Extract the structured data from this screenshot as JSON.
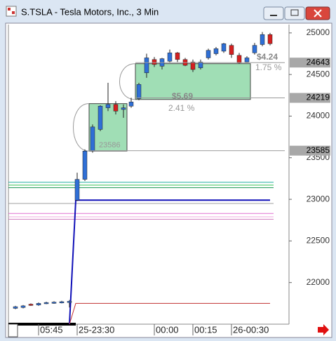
{
  "title": "S.TSLA - Tesla Motors, Inc., 3 Min",
  "chart_data": {
    "type": "candlestick",
    "categories": [
      null,
      null,
      null,
      "05:45",
      null,
      null,
      null,
      null,
      "25-23:30",
      null,
      null,
      null,
      null,
      null,
      null,
      null,
      null,
      null,
      "00:00",
      null,
      null,
      null,
      null,
      "00:15",
      null,
      null,
      null,
      null,
      "26-00:30",
      null,
      null,
      null,
      null,
      null
    ],
    "open": [
      21690,
      21700,
      21740,
      21730,
      21745,
      21750,
      21755,
      21760,
      22990,
      23240,
      23580,
      23840,
      24100,
      24140,
      24080,
      24120,
      24210,
      24520,
      24680,
      24600,
      24660,
      24760,
      24680,
      24650,
      24580,
      24700,
      24750,
      24780,
      24850,
      24730,
      24650,
      24760,
      24860,
      24980
    ],
    "high": [
      21720,
      21730,
      21750,
      21760,
      21770,
      21775,
      21780,
      21790,
      23320,
      23600,
      23900,
      24130,
      24400,
      24180,
      24140,
      24220,
      24400,
      24750,
      24710,
      24700,
      24800,
      24770,
      24700,
      24680,
      24680,
      24810,
      24830,
      24880,
      24870,
      24760,
      24720,
      24880,
      25010,
      25000
    ],
    "low": [
      21680,
      21690,
      21720,
      21720,
      21740,
      21745,
      21750,
      21700,
      22980,
      23220,
      23560,
      23820,
      24060,
      24020,
      23980,
      24100,
      24190,
      24460,
      24590,
      24560,
      24640,
      24650,
      24600,
      24530,
      24560,
      24680,
      24730,
      24760,
      24700,
      24630,
      24640,
      24740,
      24840,
      24850
    ],
    "close": [
      21710,
      21720,
      21725,
      21750,
      21760,
      21765,
      21770,
      21775,
      23240,
      23580,
      23870,
      24120,
      24140,
      24060,
      24100,
      24170,
      24380,
      24700,
      24620,
      24690,
      24760,
      24680,
      24610,
      24560,
      24650,
      24790,
      24810,
      24870,
      24740,
      24640,
      24700,
      24850,
      24980,
      24870
    ],
    "up_color": "#2f6fd6",
    "down_color": "#d42020",
    "ylim": [
      21500,
      25100
    ],
    "yticks": [
      22000,
      22500,
      23000,
      23500,
      24000,
      24500,
      25000
    ],
    "levels": [
      {
        "value": 23205,
        "color": "#22b0a0"
      },
      {
        "value": 23170,
        "color": "#30c050"
      },
      {
        "value": 23140,
        "color": "#1f9a5a"
      },
      {
        "value": 22950,
        "color": "#a0a0a0"
      },
      {
        "value": 22830,
        "color": "#e070d0"
      },
      {
        "value": 22790,
        "color": "#f0a8e0"
      },
      {
        "value": 22760,
        "color": "#d080c0"
      }
    ],
    "stops": [
      {
        "value": 22990,
        "color": "#1010b8"
      },
      {
        "value": 21750,
        "color": "#c03030"
      }
    ],
    "zones": [
      {
        "from": 10,
        "to": 14,
        "low": 23580,
        "high": 24150,
        "label": "23586"
      },
      {
        "from": 16,
        "to": 30,
        "low": 24200,
        "high": 24630
      }
    ],
    "badges": [
      {
        "value": 24643,
        "label": "24643"
      },
      {
        "value": 24219,
        "label": "24219"
      },
      {
        "value": 23585,
        "label": "23585"
      }
    ],
    "notes": [
      "$5.69",
      "2.41 %",
      "$4.24",
      "1.75 %"
    ]
  }
}
